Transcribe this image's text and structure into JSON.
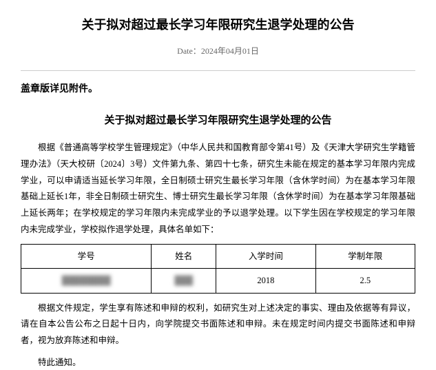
{
  "header": {
    "title": "关于拟对超过最长学习年限研究生退学处理的公告",
    "date_label": "Date：",
    "date_value": "2024年04月01日"
  },
  "attachment_note": "盖章版详见附件。",
  "sub_title": "关于拟对超过最长学习年限研究生退学处理的公告",
  "paragraphs": {
    "p1": "根据《普通高等学校学生管理规定》（中华人民共和国教育部令第41号）及《天津大学研究生学籍管理办法》（天大校研〔2024〕3号）文件第九条、第四十七条，研究生未能在规定的基本学习年限内完成学业，可以申请适当延长学习年限，全日制硕士研究生最长学习年限（含休学时间）为在基本学习年限基础上延长1年，非全日制硕士研究生、博士研究生最长学习年限（含休学时间）为在基本学习年限基础上延长两年；在学校规定的学习年限内未完成学业的予以退学处理。以下学生因在学校规定的学习年限内未完成学业，学校拟作退学处理，具体名单如下：",
    "p2": "根据文件规定，学生享有陈述和申辩的权利，如研究生对上述决定的事实、理由及依据等有异议，请在自本公告公布之日起十日内，向学院提交书面陈述和申辩。未在规定时间内提交书面陈述和申辩者，视为放弃陈述和申辩。"
  },
  "final_note": "特此通知。",
  "table": {
    "headers": {
      "col1": "学号",
      "col2": "姓名",
      "col3": "入学时间",
      "col4": "学制年限"
    },
    "row": {
      "student_id": "████████",
      "name": "███",
      "enroll_year": "2018",
      "duration": "2.5"
    }
  },
  "styling": {
    "body_font": "SimSun",
    "title_fontsize": 18,
    "subtitle_fontsize": 15,
    "body_fontsize": 12.5,
    "text_color": "#000000",
    "date_color": "#666666",
    "divider_color": "#cccccc",
    "border_color": "#000000",
    "background_color": "#ffffff"
  }
}
